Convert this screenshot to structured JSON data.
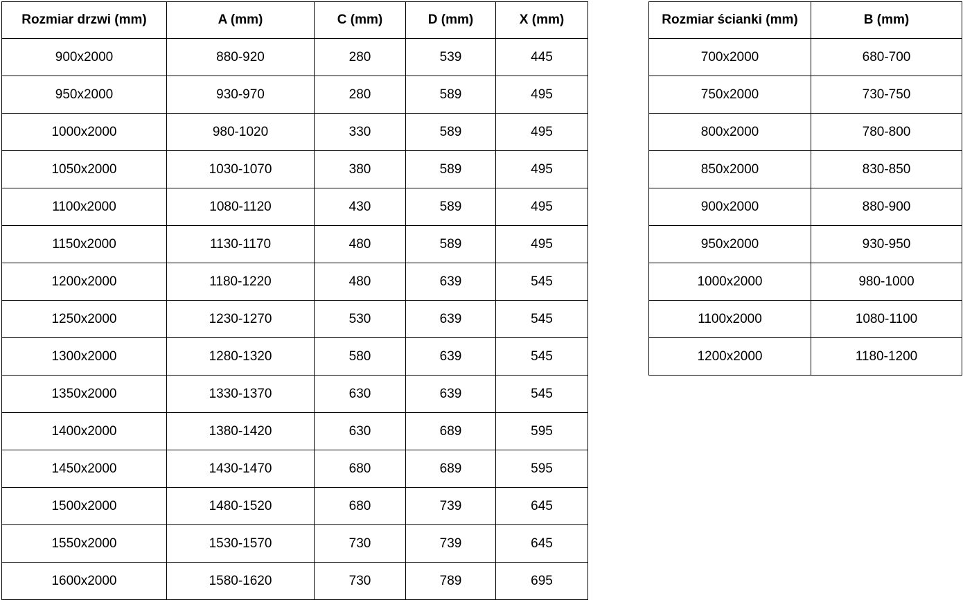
{
  "door_table": {
    "headers": [
      "Rozmiar drzwi (mm)",
      "A (mm)",
      "C (mm)",
      "D (mm)",
      "X (mm)"
    ],
    "rows": [
      [
        "900x2000",
        "880-920",
        "280",
        "539",
        "445"
      ],
      [
        "950x2000",
        "930-970",
        "280",
        "589",
        "495"
      ],
      [
        "1000x2000",
        "980-1020",
        "330",
        "589",
        "495"
      ],
      [
        "1050x2000",
        "1030-1070",
        "380",
        "589",
        "495"
      ],
      [
        "1100x2000",
        "1080-1120",
        "430",
        "589",
        "495"
      ],
      [
        "1150x2000",
        "1130-1170",
        "480",
        "589",
        "495"
      ],
      [
        "1200x2000",
        "1180-1220",
        "480",
        "639",
        "545"
      ],
      [
        "1250x2000",
        "1230-1270",
        "530",
        "639",
        "545"
      ],
      [
        "1300x2000",
        "1280-1320",
        "580",
        "639",
        "545"
      ],
      [
        "1350x2000",
        "1330-1370",
        "630",
        "639",
        "545"
      ],
      [
        "1400x2000",
        "1380-1420",
        "630",
        "689",
        "595"
      ],
      [
        "1450x2000",
        "1430-1470",
        "680",
        "689",
        "595"
      ],
      [
        "1500x2000",
        "1480-1520",
        "680",
        "739",
        "645"
      ],
      [
        "1550x2000",
        "1530-1570",
        "730",
        "739",
        "645"
      ],
      [
        "1600x2000",
        "1580-1620",
        "730",
        "789",
        "695"
      ]
    ]
  },
  "wall_table": {
    "headers": [
      "Rozmiar ścianki (mm)",
      "B (mm)"
    ],
    "rows": [
      [
        "700x2000",
        "680-700"
      ],
      [
        "750x2000",
        "730-750"
      ],
      [
        "800x2000",
        "780-800"
      ],
      [
        "850x2000",
        "830-850"
      ],
      [
        "900x2000",
        "880-900"
      ],
      [
        "950x2000",
        "930-950"
      ],
      [
        "1000x2000",
        "980-1000"
      ],
      [
        "1100x2000",
        "1080-1100"
      ],
      [
        "1200x2000",
        "1180-1200"
      ]
    ]
  },
  "colors": {
    "border": "#000000",
    "text": "#000000",
    "background": "#ffffff"
  }
}
